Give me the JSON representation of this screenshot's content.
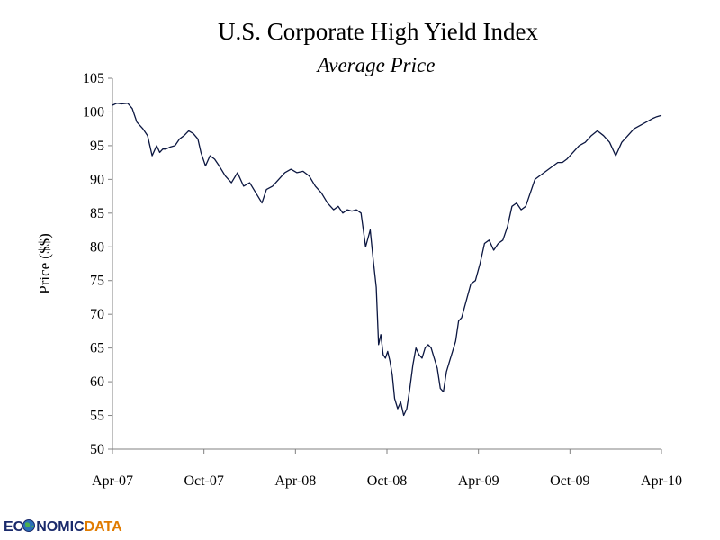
{
  "chart_data": {
    "type": "line",
    "title": "U.S. Corporate High Yield Index",
    "subtitle": "Average Price",
    "xlabel": "",
    "ylabel": "Price ($$)",
    "ylim": [
      50,
      105
    ],
    "yticks": [
      50,
      55,
      60,
      65,
      70,
      75,
      80,
      85,
      90,
      95,
      100,
      105
    ],
    "xlim": [
      0,
      36
    ],
    "xticks": [
      {
        "pos": 0,
        "label": "Apr-07"
      },
      {
        "pos": 6,
        "label": "Oct-07"
      },
      {
        "pos": 12,
        "label": "Apr-08"
      },
      {
        "pos": 18,
        "label": "Oct-08"
      },
      {
        "pos": 24,
        "label": "Apr-09"
      },
      {
        "pos": 30,
        "label": "Oct-09"
      },
      {
        "pos": 36,
        "label": "Apr-10"
      }
    ],
    "grid": false,
    "series": [
      {
        "name": "Average Price",
        "color": "#0b1640",
        "x": [
          0,
          0.3,
          0.6,
          1.0,
          1.3,
          1.6,
          2.0,
          2.3,
          2.6,
          2.9,
          3.1,
          3.3,
          3.5,
          3.8,
          4.1,
          4.4,
          4.7,
          5.0,
          5.3,
          5.6,
          5.8,
          6.1,
          6.4,
          6.7,
          7.0,
          7.4,
          7.8,
          8.2,
          8.6,
          9.0,
          9.4,
          9.8,
          10.1,
          10.5,
          10.9,
          11.3,
          11.7,
          12.1,
          12.5,
          12.9,
          13.3,
          13.7,
          14.1,
          14.5,
          14.8,
          15.1,
          15.4,
          15.7,
          16.0,
          16.3,
          16.6,
          16.9,
          17.1,
          17.3,
          17.45,
          17.6,
          17.75,
          17.9,
          18.05,
          18.2,
          18.35,
          18.5,
          18.7,
          18.9,
          19.1,
          19.3,
          19.5,
          19.7,
          19.9,
          20.1,
          20.3,
          20.5,
          20.7,
          20.9,
          21.1,
          21.3,
          21.5,
          21.7,
          21.9,
          22.1,
          22.3,
          22.5,
          22.7,
          22.9,
          23.2,
          23.5,
          23.8,
          24.1,
          24.4,
          24.7,
          25.0,
          25.3,
          25.6,
          25.9,
          26.2,
          26.5,
          26.8,
          27.1,
          27.4,
          27.7,
          28.0,
          28.3,
          28.6,
          28.9,
          29.2,
          29.5,
          29.8,
          30.2,
          30.6,
          31.0,
          31.4,
          31.8,
          32.2,
          32.6,
          33.0,
          33.4,
          33.8,
          34.2,
          34.6,
          35.0,
          35.4,
          35.7,
          36.0
        ],
        "y": [
          101.0,
          101.3,
          101.2,
          101.3,
          100.5,
          98.5,
          97.5,
          96.5,
          93.5,
          95.0,
          94.0,
          94.5,
          94.5,
          94.8,
          95.0,
          96.0,
          96.5,
          97.2,
          96.8,
          96.0,
          94.0,
          92.0,
          93.5,
          93.0,
          92.0,
          90.5,
          89.5,
          91.0,
          89.0,
          89.5,
          88.0,
          86.5,
          88.5,
          89.0,
          90.0,
          91.0,
          91.5,
          91.0,
          91.2,
          90.5,
          89.0,
          88.0,
          86.5,
          85.5,
          86.0,
          85.0,
          85.5,
          85.3,
          85.5,
          85.0,
          80.0,
          82.5,
          78.0,
          74.0,
          65.5,
          67.0,
          64.0,
          63.5,
          64.5,
          63.0,
          61.0,
          57.5,
          56.0,
          57.0,
          55.0,
          56.0,
          59.0,
          62.5,
          65.0,
          64.0,
          63.5,
          65.0,
          65.5,
          65.0,
          63.5,
          62.0,
          59.0,
          58.5,
          61.5,
          63.0,
          64.5,
          66.0,
          69.0,
          69.5,
          72.0,
          74.5,
          75.0,
          77.5,
          80.5,
          81.0,
          79.5,
          80.5,
          81.0,
          83.0,
          86.0,
          86.5,
          85.5,
          86.0,
          88.0,
          90.0,
          90.5,
          91.0,
          91.5,
          92.0,
          92.5,
          92.5,
          93.0,
          94.0,
          95.0,
          95.5,
          96.5,
          97.2,
          96.5,
          95.5,
          93.5,
          95.5,
          96.5,
          97.5,
          98.0,
          98.5,
          99.0,
          99.3,
          99.5
        ]
      }
    ]
  },
  "footer": {
    "logo": "ECONOMICDATA",
    "logo_parts": [
      "EC",
      "NOMIC",
      "DATA"
    ]
  }
}
